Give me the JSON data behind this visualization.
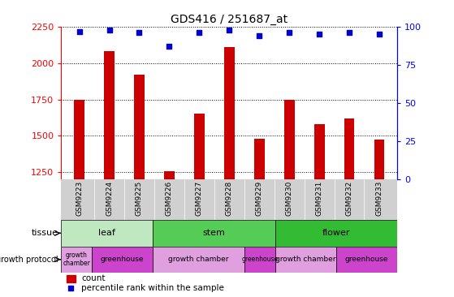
{
  "title": "GDS416 / 251687_at",
  "samples": [
    "GSM9223",
    "GSM9224",
    "GSM9225",
    "GSM9226",
    "GSM9227",
    "GSM9228",
    "GSM9229",
    "GSM9230",
    "GSM9231",
    "GSM9232",
    "GSM9233"
  ],
  "counts": [
    1750,
    2080,
    1920,
    1255,
    1650,
    2110,
    1480,
    1750,
    1580,
    1620,
    1475
  ],
  "percentiles": [
    97,
    98,
    96,
    87,
    96,
    98,
    94,
    96,
    95,
    96,
    95
  ],
  "ylim_left": [
    1200,
    2250
  ],
  "ylim_right": [
    0,
    100
  ],
  "yticks_left": [
    1250,
    1500,
    1750,
    2000,
    2250
  ],
  "yticks_right": [
    0,
    25,
    50,
    75,
    100
  ],
  "bar_color": "#cc0000",
  "dot_color": "#0000cc",
  "tissue_groups": [
    {
      "label": "leaf",
      "start": 0,
      "end": 3,
      "color": "#c0e8c0"
    },
    {
      "label": "stem",
      "start": 3,
      "end": 7,
      "color": "#55cc55"
    },
    {
      "label": "flower",
      "start": 7,
      "end": 11,
      "color": "#33bb33"
    }
  ],
  "growth_groups": [
    {
      "label": "growth\nchamber",
      "start": 0,
      "end": 1,
      "is_greenhouse": false
    },
    {
      "label": "greenhouse",
      "start": 1,
      "end": 3,
      "is_greenhouse": true
    },
    {
      "label": "growth chamber",
      "start": 3,
      "end": 6,
      "is_greenhouse": false
    },
    {
      "label": "greenhouse",
      "start": 6,
      "end": 7,
      "is_greenhouse": true
    },
    {
      "label": "growth chamber",
      "start": 7,
      "end": 9,
      "is_greenhouse": false
    },
    {
      "label": "greenhouse",
      "start": 9,
      "end": 11,
      "is_greenhouse": true
    }
  ],
  "greenhouse_color": "#cc44cc",
  "growth_chamber_color": "#e0a0e0",
  "tissue_label": "tissue",
  "growth_label": "growth protocol",
  "legend_count_label": "count",
  "legend_pct_label": "percentile rank within the sample",
  "sample_area_color": "#d0d0d0",
  "main_bg_color": "#ffffff",
  "bar_bottom": 1200
}
